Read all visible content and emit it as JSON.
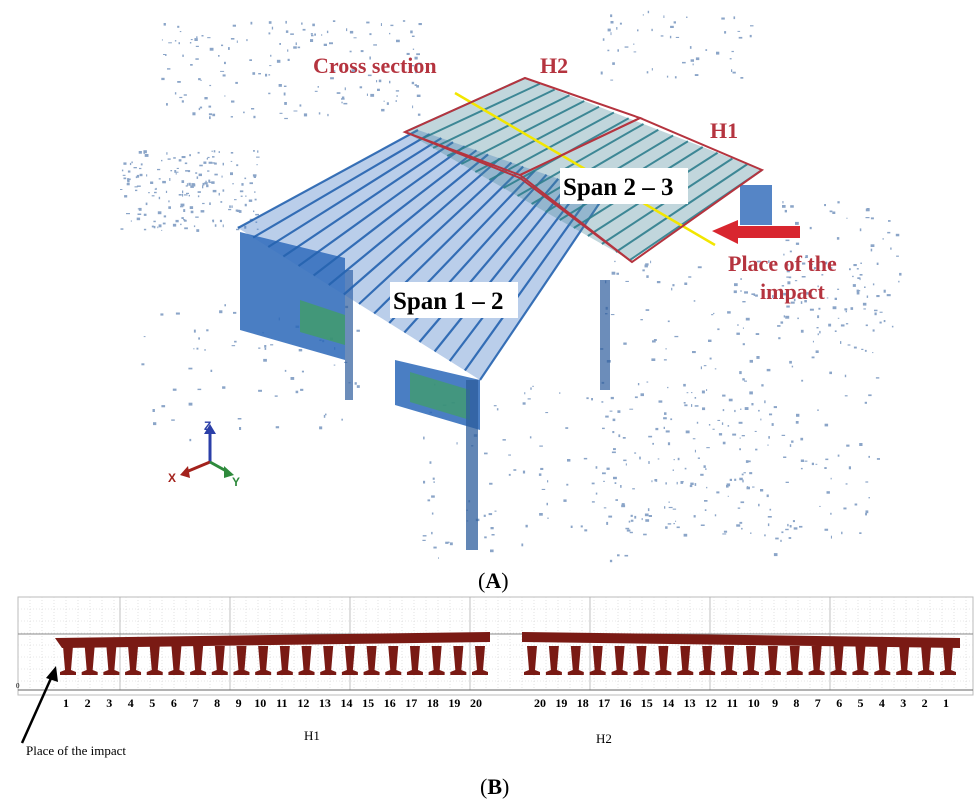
{
  "panel_a": {
    "label_letter": "A",
    "cross_section": "Cross section",
    "h2": "H2",
    "h1": "H1",
    "span_23": "Span 2 – 3",
    "span_12": "Span 1 – 2",
    "impact_line1": "Place of the",
    "impact_line2": "impact",
    "axes": {
      "z": "Z",
      "x": "X",
      "y": "Y"
    },
    "colors": {
      "annotation": "#b5343f",
      "arrow": "#d8262f",
      "cloud_blue": "#2a67b8",
      "cloud_green": "#3fa35a"
    }
  },
  "panel_b": {
    "label_letter": "B",
    "zero_label": "0",
    "impact_label": "Place of the impact",
    "h1_label": "H1",
    "h2_label": "H2",
    "h1_numbers": [
      "1",
      "2",
      "3",
      "4",
      "5",
      "6",
      "7",
      "8",
      "9",
      "10",
      "11",
      "12",
      "13",
      "14",
      "15",
      "16",
      "17",
      "18",
      "19",
      "20"
    ],
    "h2_numbers": [
      "20",
      "19",
      "18",
      "17",
      "16",
      "15",
      "14",
      "13",
      "12",
      "11",
      "10",
      "9",
      "8",
      "7",
      "6",
      "5",
      "4",
      "3",
      "2",
      "1"
    ],
    "colors": {
      "profile": "#7a1a14"
    }
  }
}
